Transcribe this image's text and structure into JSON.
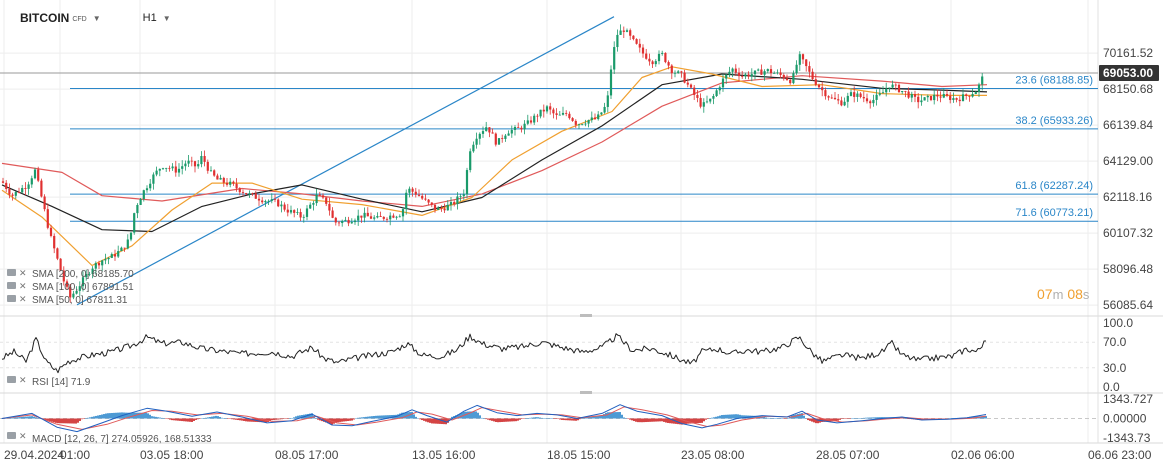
{
  "header": {
    "symbol": "BITCOIN",
    "instrument_type": "CFD",
    "timeframe": "H1"
  },
  "timer": {
    "minutes": "07",
    "m_unit": "m",
    "seconds": "08",
    "s_unit": "s"
  },
  "colors": {
    "sma200": "#e05a5a",
    "sma100": "#222222",
    "sma50": "#f0a030",
    "fib": "#2a86c8",
    "trend": "#2a86c8",
    "up": "#1a9a6a",
    "down": "#e03030",
    "price_tag": "#333333",
    "macd_line": "#2060c0",
    "signal_line": "#e05a5a",
    "hist_pos": "#3a90d0",
    "hist_neg": "#d03030"
  },
  "chart_data": [
    {
      "type": "candlestick",
      "instrument": "BITCOIN",
      "timeframe": "H1",
      "y_ticks": [
        "70161.52",
        "68150.68",
        "66139.84",
        "64129.00",
        "62118.16",
        "60107.32",
        "58096.48",
        "56085.64"
      ],
      "ylim": [
        55700,
        72350
      ],
      "x_ticks": [
        "29.04.2024",
        "01:00",
        "03.05 18:00",
        "08.05 17:00",
        "13.05 16:00",
        "18.05 15:00",
        "23.05 08:00",
        "28.05 07:00",
        "02.06 06:00",
        "06.06 23:00"
      ],
      "current_price": "69053.00",
      "current_price_value": 69053,
      "fib_levels": [
        {
          "label": "23.6 (68188.85)",
          "value": 68188.85
        },
        {
          "label": "38.2 (65933.26)",
          "value": 65933.26
        },
        {
          "label": "61.8 (62287.24)",
          "value": 62287.24
        },
        {
          "label": "71.6 (60773.21)",
          "value": 60773.21
        }
      ],
      "trendline": {
        "from_value": 56100,
        "to_value": 72200
      },
      "close_path": [
        [
          0,
          63000
        ],
        [
          10,
          62200
        ],
        [
          25,
          62800
        ],
        [
          33,
          63600
        ],
        [
          40,
          62000
        ],
        [
          48,
          60000
        ],
        [
          55,
          58700
        ],
        [
          62,
          57400
        ],
        [
          68,
          56500
        ],
        [
          75,
          57000
        ],
        [
          80,
          57400
        ],
        [
          90,
          58200
        ],
        [
          100,
          58600
        ],
        [
          110,
          58800
        ],
        [
          120,
          59200
        ],
        [
          128,
          59800
        ],
        [
          133,
          61500
        ],
        [
          140,
          62300
        ],
        [
          150,
          63200
        ],
        [
          160,
          63900
        ],
        [
          175,
          63600
        ],
        [
          185,
          64100
        ],
        [
          195,
          63800
        ],
        [
          200,
          64400
        ],
        [
          208,
          63500
        ],
        [
          215,
          63100
        ],
        [
          230,
          62800
        ],
        [
          245,
          62300
        ],
        [
          260,
          62000
        ],
        [
          275,
          61800
        ],
        [
          285,
          61400
        ],
        [
          300,
          61000
        ],
        [
          315,
          62200
        ],
        [
          325,
          61800
        ],
        [
          332,
          60700
        ],
        [
          345,
          60800
        ],
        [
          360,
          61100
        ],
        [
          375,
          60900
        ],
        [
          390,
          61100
        ],
        [
          400,
          61200
        ],
        [
          405,
          62600
        ],
        [
          415,
          62300
        ],
        [
          425,
          61800
        ],
        [
          435,
          61400
        ],
        [
          450,
          61700
        ],
        [
          462,
          62400
        ],
        [
          468,
          64800
        ],
        [
          475,
          65600
        ],
        [
          485,
          66100
        ],
        [
          495,
          65100
        ],
        [
          505,
          65800
        ],
        [
          515,
          65900
        ],
        [
          525,
          66200
        ],
        [
          535,
          66700
        ],
        [
          545,
          67100
        ],
        [
          555,
          66600
        ],
        [
          565,
          66800
        ],
        [
          575,
          66200
        ],
        [
          585,
          66400
        ],
        [
          595,
          66500
        ],
        [
          605,
          67300
        ],
        [
          610,
          69800
        ],
        [
          615,
          71200
        ],
        [
          622,
          71500
        ],
        [
          630,
          70900
        ],
        [
          640,
          70200
        ],
        [
          650,
          69700
        ],
        [
          660,
          70100
        ],
        [
          670,
          69200
        ],
        [
          680,
          68900
        ],
        [
          690,
          68000
        ],
        [
          700,
          67200
        ],
        [
          710,
          67600
        ],
        [
          720,
          68600
        ],
        [
          730,
          69300
        ],
        [
          740,
          68900
        ],
        [
          750,
          69000
        ],
        [
          765,
          69200
        ],
        [
          780,
          68900
        ],
        [
          790,
          68600
        ],
        [
          797,
          70000
        ],
        [
          803,
          69500
        ],
        [
          810,
          68800
        ],
        [
          820,
          68100
        ],
        [
          830,
          67600
        ],
        [
          840,
          67400
        ],
        [
          850,
          67900
        ],
        [
          860,
          67700
        ],
        [
          870,
          67500
        ],
        [
          880,
          67900
        ],
        [
          887,
          68400
        ],
        [
          895,
          68200
        ],
        [
          905,
          67900
        ],
        [
          915,
          67500
        ],
        [
          925,
          67600
        ],
        [
          935,
          67800
        ],
        [
          945,
          67700
        ],
        [
          955,
          67600
        ],
        [
          965,
          67800
        ],
        [
          975,
          68100
        ],
        [
          983,
          69100
        ]
      ],
      "sma200_path": [
        [
          0,
          64000
        ],
        [
          60,
          63500
        ],
        [
          100,
          62200
        ],
        [
          160,
          61900
        ],
        [
          240,
          62600
        ],
        [
          300,
          62300
        ],
        [
          360,
          61900
        ],
        [
          420,
          61600
        ],
        [
          480,
          62300
        ],
        [
          540,
          63600
        ],
        [
          600,
          65200
        ],
        [
          660,
          67200
        ],
        [
          720,
          68500
        ],
        [
          800,
          68900
        ],
        [
          880,
          68600
        ],
        [
          940,
          68300
        ],
        [
          985,
          68400
        ]
      ],
      "sma100_path": [
        [
          0,
          62800
        ],
        [
          50,
          61600
        ],
        [
          100,
          60300
        ],
        [
          150,
          60200
        ],
        [
          200,
          61600
        ],
        [
          250,
          62300
        ],
        [
          300,
          62800
        ],
        [
          360,
          62000
        ],
        [
          420,
          61300
        ],
        [
          480,
          62100
        ],
        [
          540,
          64200
        ],
        [
          600,
          66100
        ],
        [
          660,
          68400
        ],
        [
          720,
          69000
        ],
        [
          800,
          68700
        ],
        [
          880,
          68200
        ],
        [
          940,
          68100
        ],
        [
          985,
          68000
        ]
      ],
      "sma50_path": [
        [
          0,
          62500
        ],
        [
          40,
          61000
        ],
        [
          90,
          58300
        ],
        [
          130,
          59400
        ],
        [
          170,
          61400
        ],
        [
          210,
          62900
        ],
        [
          250,
          62900
        ],
        [
          300,
          62000
        ],
        [
          360,
          61700
        ],
        [
          420,
          61100
        ],
        [
          470,
          62100
        ],
        [
          510,
          64200
        ],
        [
          560,
          65800
        ],
        [
          610,
          66900
        ],
        [
          640,
          68800
        ],
        [
          670,
          69400
        ],
        [
          710,
          69000
        ],
        [
          760,
          68300
        ],
        [
          820,
          68400
        ],
        [
          880,
          67900
        ],
        [
          940,
          67800
        ],
        [
          985,
          67800
        ]
      ],
      "indicator_labels": [
        {
          "text": "SMA [200, 0] 68185.70"
        },
        {
          "text": "SMA [100, 0] 67891.51"
        },
        {
          "text": "SMA [50, 0] 67811.31"
        }
      ]
    },
    {
      "type": "line",
      "name": "RSI [14] 71.9",
      "y_ticks": [
        "100.0",
        "70.0",
        "30.0",
        "0.0"
      ],
      "ylim": [
        0,
        100
      ],
      "points": [
        [
          0,
          45
        ],
        [
          12,
          55
        ],
        [
          24,
          40
        ],
        [
          34,
          75
        ],
        [
          44,
          40
        ],
        [
          55,
          25
        ],
        [
          66,
          40
        ],
        [
          76,
          45
        ],
        [
          90,
          50
        ],
        [
          110,
          55
        ],
        [
          130,
          65
        ],
        [
          145,
          78
        ],
        [
          160,
          68
        ],
        [
          180,
          70
        ],
        [
          200,
          60
        ],
        [
          220,
          56
        ],
        [
          240,
          52
        ],
        [
          270,
          55
        ],
        [
          290,
          48
        ],
        [
          310,
          62
        ],
        [
          322,
          45
        ],
        [
          335,
          38
        ],
        [
          350,
          44
        ],
        [
          370,
          50
        ],
        [
          390,
          55
        ],
        [
          405,
          68
        ],
        [
          420,
          50
        ],
        [
          440,
          48
        ],
        [
          455,
          58
        ],
        [
          468,
          80
        ],
        [
          480,
          68
        ],
        [
          500,
          60
        ],
        [
          520,
          63
        ],
        [
          540,
          70
        ],
        [
          560,
          62
        ],
        [
          580,
          55
        ],
        [
          600,
          62
        ],
        [
          615,
          80
        ],
        [
          630,
          58
        ],
        [
          650,
          60
        ],
        [
          668,
          50
        ],
        [
          680,
          42
        ],
        [
          690,
          36
        ],
        [
          700,
          55
        ],
        [
          715,
          60
        ],
        [
          730,
          52
        ],
        [
          745,
          58
        ],
        [
          760,
          55
        ],
        [
          780,
          62
        ],
        [
          797,
          78
        ],
        [
          810,
          54
        ],
        [
          820,
          40
        ],
        [
          840,
          50
        ],
        [
          860,
          45
        ],
        [
          880,
          55
        ],
        [
          890,
          68
        ],
        [
          900,
          50
        ],
        [
          915,
          42
        ],
        [
          930,
          45
        ],
        [
          950,
          48
        ],
        [
          965,
          60
        ],
        [
          975,
          55
        ],
        [
          984,
          71.9
        ]
      ]
    },
    {
      "type": "line",
      "name": "MACD [12, 26, 7] 274.05926, 168.51333",
      "y_ticks": [
        "1343.727",
        "0.00000",
        "-1343.73"
      ],
      "ylim": [
        -1343.73,
        1343.727
      ],
      "macd_points": [
        [
          0,
          0
        ],
        [
          30,
          350
        ],
        [
          55,
          -600
        ],
        [
          75,
          -900
        ],
        [
          100,
          -300
        ],
        [
          120,
          200
        ],
        [
          145,
          700
        ],
        [
          165,
          500
        ],
        [
          190,
          150
        ],
        [
          215,
          450
        ],
        [
          240,
          100
        ],
        [
          265,
          -300
        ],
        [
          290,
          -150
        ],
        [
          310,
          300
        ],
        [
          330,
          -450
        ],
        [
          350,
          -500
        ],
        [
          370,
          -200
        ],
        [
          395,
          150
        ],
        [
          410,
          600
        ],
        [
          425,
          200
        ],
        [
          445,
          -250
        ],
        [
          462,
          500
        ],
        [
          475,
          900
        ],
        [
          495,
          400
        ],
        [
          515,
          200
        ],
        [
          535,
          350
        ],
        [
          555,
          250
        ],
        [
          575,
          0
        ],
        [
          600,
          350
        ],
        [
          618,
          950
        ],
        [
          635,
          500
        ],
        [
          660,
          200
        ],
        [
          680,
          -350
        ],
        [
          700,
          -650
        ],
        [
          715,
          -400
        ],
        [
          735,
          0
        ],
        [
          760,
          200
        ],
        [
          785,
          100
        ],
        [
          800,
          500
        ],
        [
          815,
          -100
        ],
        [
          835,
          -300
        ],
        [
          860,
          -150
        ],
        [
          880,
          0
        ],
        [
          900,
          100
        ],
        [
          920,
          -100
        ],
        [
          945,
          -50
        ],
        [
          965,
          50
        ],
        [
          984,
          274
        ]
      ],
      "signal_points": [
        [
          0,
          0
        ],
        [
          30,
          250
        ],
        [
          55,
          -400
        ],
        [
          80,
          -750
        ],
        [
          105,
          -400
        ],
        [
          125,
          50
        ],
        [
          150,
          550
        ],
        [
          170,
          500
        ],
        [
          195,
          250
        ],
        [
          220,
          350
        ],
        [
          245,
          150
        ],
        [
          270,
          -200
        ],
        [
          295,
          -150
        ],
        [
          315,
          150
        ],
        [
          335,
          -300
        ],
        [
          355,
          -450
        ],
        [
          375,
          -250
        ],
        [
          400,
          50
        ],
        [
          415,
          450
        ],
        [
          430,
          300
        ],
        [
          450,
          -100
        ],
        [
          467,
          350
        ],
        [
          480,
          750
        ],
        [
          500,
          500
        ],
        [
          520,
          250
        ],
        [
          540,
          300
        ],
        [
          560,
          250
        ],
        [
          580,
          50
        ],
        [
          605,
          250
        ],
        [
          622,
          800
        ],
        [
          640,
          600
        ],
        [
          665,
          250
        ],
        [
          685,
          -200
        ],
        [
          705,
          -550
        ],
        [
          720,
          -450
        ],
        [
          740,
          -100
        ],
        [
          765,
          150
        ],
        [
          790,
          100
        ],
        [
          805,
          350
        ],
        [
          820,
          0
        ],
        [
          840,
          -250
        ],
        [
          865,
          -150
        ],
        [
          885,
          -30
        ],
        [
          905,
          60
        ],
        [
          925,
          -50
        ],
        [
          950,
          -40
        ],
        [
          970,
          20
        ],
        [
          984,
          168.5
        ]
      ]
    }
  ]
}
